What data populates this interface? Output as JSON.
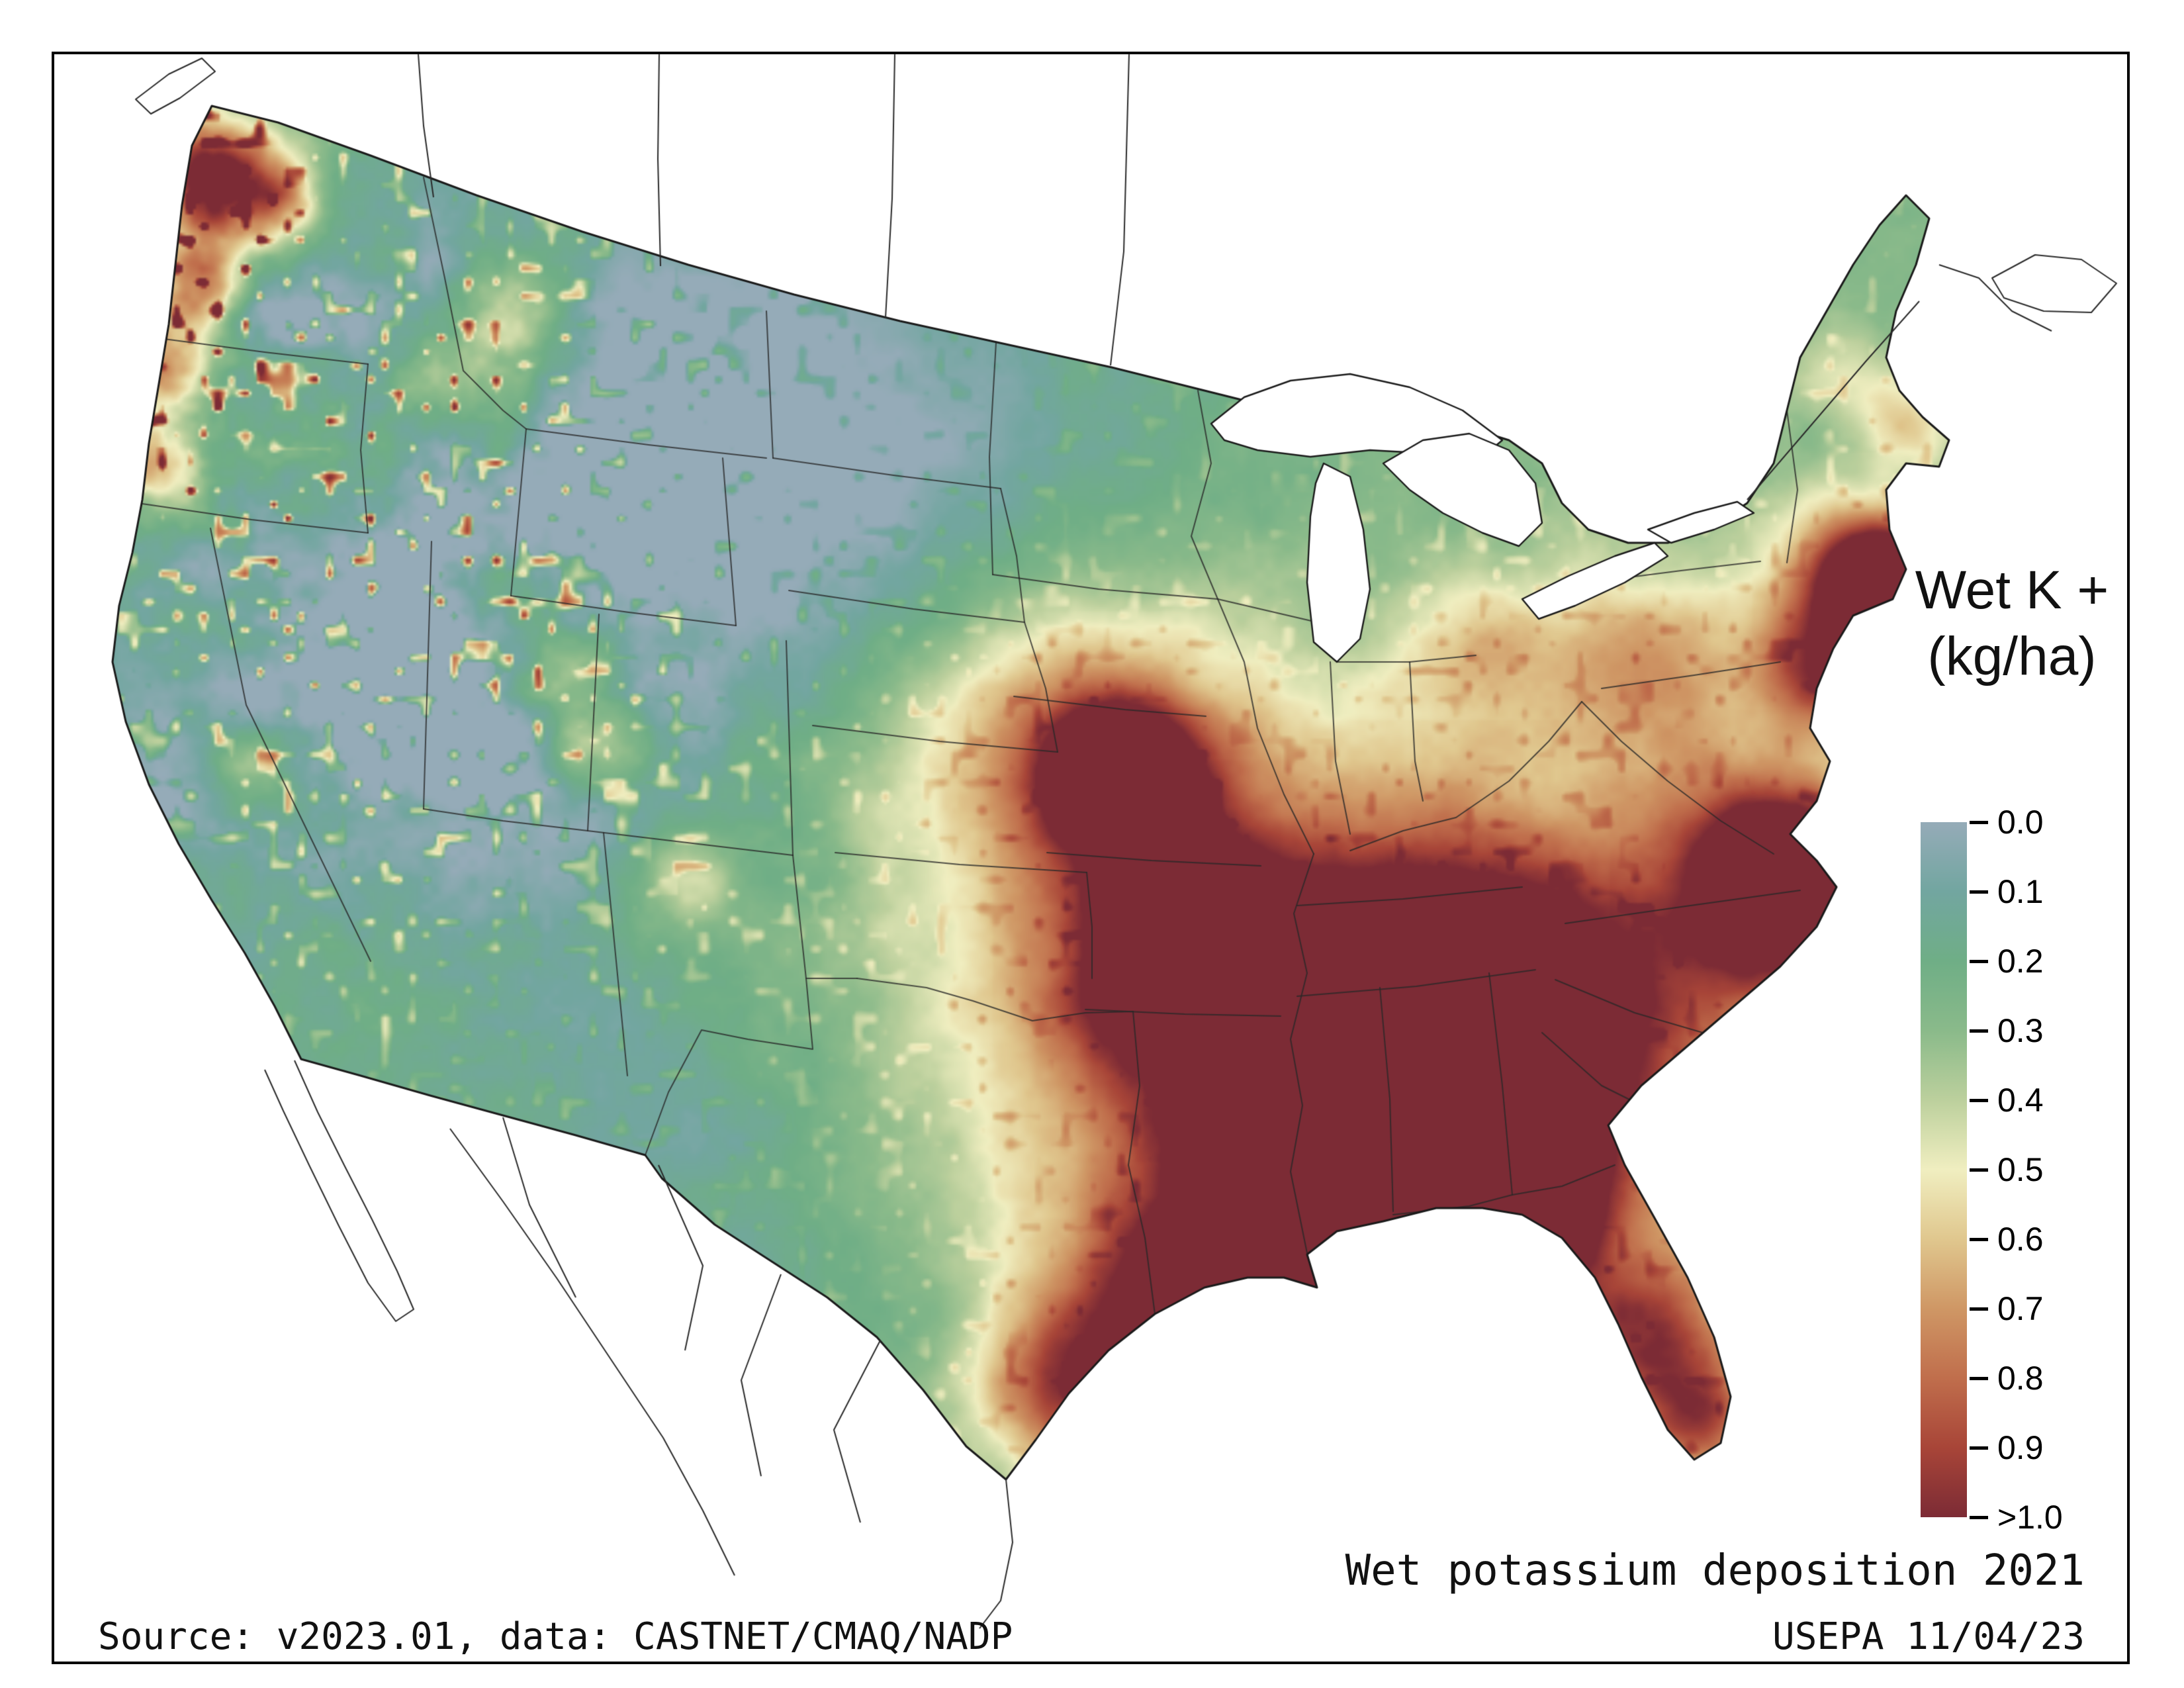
{
  "figure": {
    "title": "Wet potassium deposition 2021",
    "source_line": "Source: v2023.01, data: CASTNET/CMAQ/NADP",
    "agency_line": "USEPA 11/04/23"
  },
  "legend": {
    "title_line1": "Wet K +",
    "title_line2": "(kg/ha)",
    "tick_labels": [
      "0.0",
      "0.1",
      "0.2",
      "0.3",
      "0.4",
      "0.5",
      "0.6",
      "0.7",
      "0.8",
      "0.9",
      ">1.0"
    ],
    "colorscale": [
      {
        "v": 0.0,
        "c": "#95abb8"
      },
      {
        "v": 0.1,
        "c": "#72a6a0"
      },
      {
        "v": 0.2,
        "c": "#6fae86"
      },
      {
        "v": 0.3,
        "c": "#8aba8a"
      },
      {
        "v": 0.4,
        "c": "#bcd09d"
      },
      {
        "v": 0.5,
        "c": "#f0eec0"
      },
      {
        "v": 0.6,
        "c": "#e0c78e"
      },
      {
        "v": 0.7,
        "c": "#cf9765"
      },
      {
        "v": 0.8,
        "c": "#c06e4c"
      },
      {
        "v": 0.9,
        "c": "#a84538"
      },
      {
        "v": 1.0,
        "c": "#7c2b35"
      }
    ]
  }
}
